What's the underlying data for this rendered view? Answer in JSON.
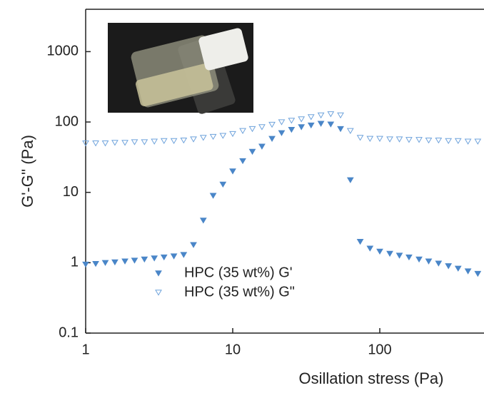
{
  "chart_data": {
    "type": "scatter",
    "xlabel": "Osillation stress (Pa)",
    "ylabel": "G'-G'' (Pa)",
    "xscale": "log",
    "yscale": "log",
    "xlim": [
      1,
      500
    ],
    "ylim": [
      0.1,
      4000
    ],
    "xticks": [
      1,
      10,
      100
    ],
    "yticks": [
      0.1,
      1,
      10,
      100,
      1000
    ],
    "legend": "lower center",
    "x": [
      1,
      1.17,
      1.36,
      1.58,
      1.85,
      2.15,
      2.51,
      2.93,
      3.41,
      3.98,
      4.64,
      5.41,
      6.31,
      7.36,
      8.58,
      10,
      11.7,
      13.6,
      15.8,
      18.5,
      21.5,
      25.1,
      29.3,
      34.1,
      39.8,
      46.4,
      54.1,
      63.1,
      73.6,
      85.8,
      100,
      117,
      136,
      158,
      185,
      215,
      251,
      293,
      341,
      398,
      464
    ],
    "series": [
      {
        "name": "HPC (35 wt%) G'",
        "color": "#4a86c8",
        "filled": true,
        "values": [
          0.95,
          0.97,
          1.0,
          1.02,
          1.05,
          1.08,
          1.12,
          1.16,
          1.2,
          1.24,
          1.3,
          1.8,
          4.0,
          9.0,
          13,
          20,
          28,
          38,
          45,
          58,
          70,
          78,
          85,
          90,
          95,
          93,
          80,
          15,
          2.0,
          1.6,
          1.45,
          1.35,
          1.27,
          1.2,
          1.12,
          1.05,
          0.98,
          0.9,
          0.83,
          0.76,
          0.7
        ]
      },
      {
        "name": "HPC (35 wt%) G\"",
        "color": "#6fa3dc",
        "filled": false,
        "values": [
          50,
          50,
          50,
          51,
          51,
          52,
          52,
          53,
          54,
          54,
          55,
          57,
          60,
          62,
          64,
          68,
          75,
          80,
          85,
          92,
          100,
          105,
          110,
          118,
          125,
          130,
          125,
          75,
          60,
          58,
          58,
          57,
          57,
          56,
          56,
          55,
          55,
          54,
          54,
          53,
          53
        ]
      }
    ]
  }
}
